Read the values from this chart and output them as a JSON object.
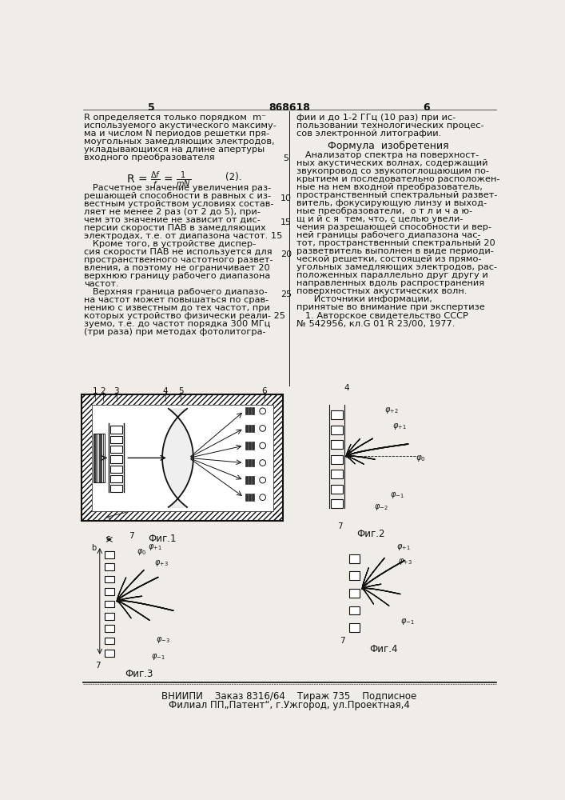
{
  "page_width": 7.07,
  "page_height": 10.0,
  "bg_color": "#f0ede8",
  "text_color": "#111111",
  "patent_number": "868618",
  "page_left": "5",
  "page_right": "6",
  "footer_line1": "ВНИИПИ    Заказ 8316/64    Тираж 735    Подписное",
  "footer_line2": "Филиал ПП„Патент“, г.Ужгород, ул.Проектная,4",
  "fig1_caption": "Фиг.1",
  "fig2_caption": "Фиг.2",
  "fig3_caption": "Фиг.3",
  "fig4_caption": "Фиг.4"
}
